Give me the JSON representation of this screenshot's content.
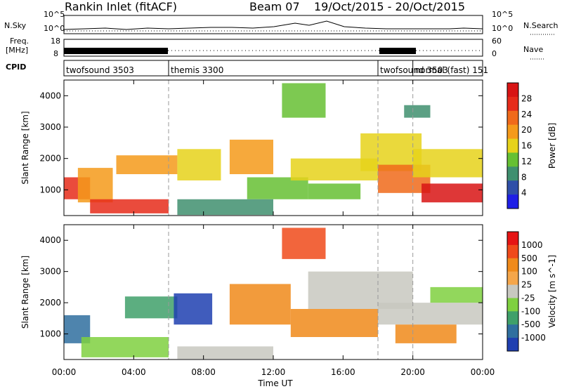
{
  "header": {
    "station": "Rankin Inlet (fitACF)",
    "beam": "Beam 07",
    "date_range": "19/Oct/2015 - 20/Oct/2015"
  },
  "strips": {
    "nsky_label": "N.Sky",
    "nsearch_label": "N.Search",
    "nsky_ticks": [
      "10^5",
      "10^0"
    ],
    "nsearch_ticks": [
      "10^5",
      "10^0"
    ],
    "freq_label_1": "Freq.",
    "freq_label_2": "[MHz]",
    "freq_ticks": [
      "18",
      "8"
    ],
    "nave_label": "Nave",
    "nave_ticks": [
      "60",
      "0"
    ],
    "cpid_label": "CPID",
    "cpid_segments": [
      {
        "label": "twofsound 3503",
        "start_h": 0,
        "end_h": 6
      },
      {
        "label": "themis 3300",
        "start_h": 6,
        "end_h": 18
      },
      {
        "label": "twofsound 3503",
        "start_h": 18,
        "end_h": 20
      },
      {
        "label": "normal (fast) 151",
        "start_h": 20,
        "end_h": 24
      }
    ]
  },
  "colors": {
    "power_scale": [
      "#1f1fe6",
      "#2f4fa8",
      "#3f8f6f",
      "#66c033",
      "#e6d21a",
      "#f59a1a",
      "#f06a1a",
      "#e62b1a",
      "#d81414"
    ],
    "velocity_scale": [
      "#1f3fb0",
      "#2f6f9f",
      "#3fa06a",
      "#7fd040",
      "#c8c8c0",
      "#f5a64a",
      "#f08a1a",
      "#f04a1a",
      "#e61414"
    ]
  },
  "chart_data": [
    {
      "type": "heatmap",
      "title": "Power",
      "xlabel": "Time UT",
      "ylabel": "Slant Range [km]",
      "x_tick_labels": [
        "00:00",
        "04:00",
        "08:00",
        "12:00",
        "16:00",
        "20:00",
        "00:00"
      ],
      "x_ticks_h": [
        0,
        4,
        8,
        12,
        16,
        20,
        24
      ],
      "xlim_h": [
        0,
        24
      ],
      "y_ticks": [
        1000,
        2000,
        3000,
        4000
      ],
      "ylim": [
        180,
        4500
      ],
      "colorbar": {
        "label": "Power [dB]",
        "range": [
          0,
          32
        ],
        "tick_labels": [
          "28",
          "24",
          "20",
          "16",
          "12",
          "8",
          "4"
        ]
      },
      "regions": [
        {
          "t0": 0.0,
          "t1": 1.5,
          "r0": 700,
          "r1": 1400,
          "level": 7
        },
        {
          "t0": 0.8,
          "t1": 2.8,
          "r0": 600,
          "r1": 1700,
          "level": 5
        },
        {
          "t0": 1.5,
          "t1": 6.0,
          "r0": 250,
          "r1": 700,
          "level": 7
        },
        {
          "t0": 3.0,
          "t1": 6.5,
          "r0": 1500,
          "r1": 2100,
          "level": 5
        },
        {
          "t0": 6.5,
          "t1": 9.0,
          "r0": 1300,
          "r1": 2300,
          "level": 4
        },
        {
          "t0": 9.5,
          "t1": 12.0,
          "r0": 1500,
          "r1": 2600,
          "level": 5
        },
        {
          "t0": 10.5,
          "t1": 14.0,
          "r0": 700,
          "r1": 1400,
          "level": 3
        },
        {
          "t0": 12.5,
          "t1": 15.0,
          "r0": 3300,
          "r1": 4400,
          "level": 3
        },
        {
          "t0": 13.0,
          "t1": 18.0,
          "r0": 1300,
          "r1": 2000,
          "level": 4
        },
        {
          "t0": 14.0,
          "t1": 17.0,
          "r0": 700,
          "r1": 1200,
          "level": 3
        },
        {
          "t0": 17.0,
          "t1": 20.5,
          "r0": 1600,
          "r1": 2800,
          "level": 4
        },
        {
          "t0": 18.0,
          "t1": 21.0,
          "r0": 900,
          "r1": 1800,
          "level": 6
        },
        {
          "t0": 20.5,
          "t1": 24.0,
          "r0": 600,
          "r1": 1200,
          "level": 8
        },
        {
          "t0": 20.0,
          "t1": 24.0,
          "r0": 1400,
          "r1": 2300,
          "level": 4
        },
        {
          "t0": 19.5,
          "t1": 21.0,
          "r0": 3300,
          "r1": 3700,
          "level": 2
        },
        {
          "t0": 6.5,
          "t1": 12.0,
          "r0": 200,
          "r1": 700,
          "level": 2
        }
      ]
    },
    {
      "type": "heatmap",
      "title": "Velocity",
      "xlabel": "Time UT",
      "ylabel": "Slant Range [km]",
      "x_tick_labels": [
        "00:00",
        "04:00",
        "08:00",
        "12:00",
        "16:00",
        "20:00",
        "00:00"
      ],
      "x_ticks_h": [
        0,
        4,
        8,
        12,
        16,
        20,
        24
      ],
      "xlim_h": [
        0,
        24
      ],
      "y_ticks": [
        1000,
        2000,
        3000,
        4000
      ],
      "ylim": [
        180,
        4500
      ],
      "colorbar": {
        "label": "Velocity [m s^-1]",
        "tick_labels": [
          "1000",
          "500",
          "100",
          "25",
          "-25",
          "-100",
          "-500",
          "-1000"
        ]
      },
      "regions": [
        {
          "t0": 0.0,
          "t1": 1.5,
          "r0": 700,
          "r1": 1600,
          "level": 1
        },
        {
          "t0": 1.0,
          "t1": 6.0,
          "r0": 250,
          "r1": 900,
          "level": 3
        },
        {
          "t0": 3.5,
          "t1": 6.5,
          "r0": 1500,
          "r1": 2200,
          "level": 2
        },
        {
          "t0": 6.3,
          "t1": 8.5,
          "r0": 1300,
          "r1": 2300,
          "level": 0
        },
        {
          "t0": 9.5,
          "t1": 13.0,
          "r0": 1300,
          "r1": 2600,
          "level": 6
        },
        {
          "t0": 12.5,
          "t1": 15.0,
          "r0": 3400,
          "r1": 4400,
          "level": 7
        },
        {
          "t0": 13.0,
          "t1": 18.0,
          "r0": 900,
          "r1": 1800,
          "level": 6
        },
        {
          "t0": 14.0,
          "t1": 20.0,
          "r0": 1800,
          "r1": 3000,
          "level": 4
        },
        {
          "t0": 18.0,
          "t1": 24.0,
          "r0": 1300,
          "r1": 2000,
          "level": 4
        },
        {
          "t0": 19.0,
          "t1": 22.5,
          "r0": 700,
          "r1": 1300,
          "level": 6
        },
        {
          "t0": 21.0,
          "t1": 24.0,
          "r0": 2000,
          "r1": 2500,
          "level": 3
        },
        {
          "t0": 6.5,
          "t1": 12.0,
          "r0": 200,
          "r1": 600,
          "level": 4
        }
      ]
    }
  ]
}
